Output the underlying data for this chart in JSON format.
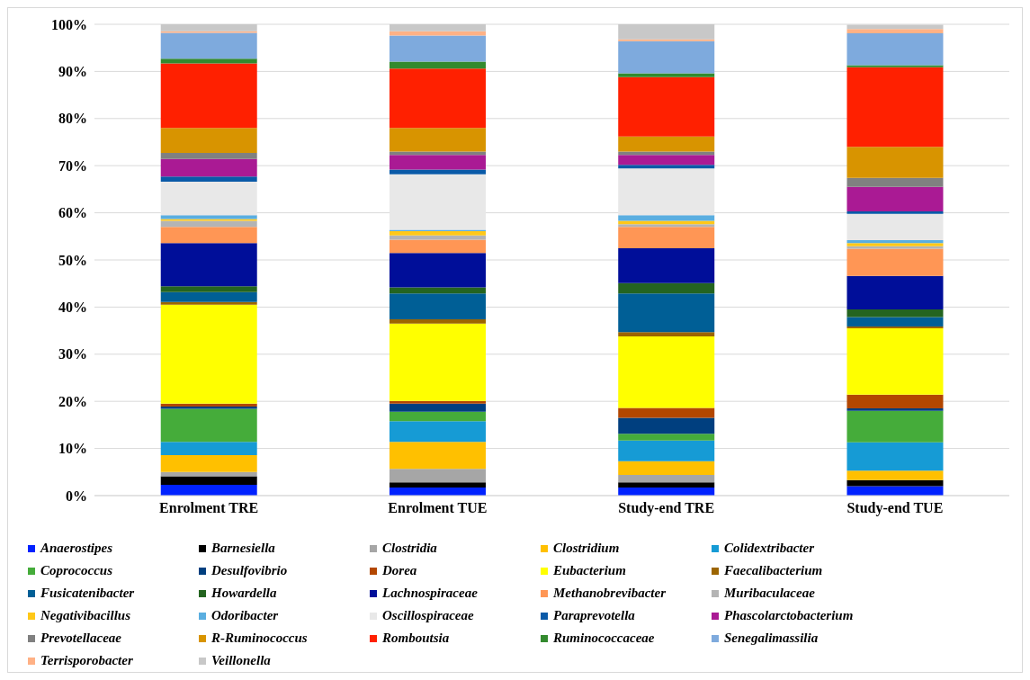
{
  "chart_data": {
    "type": "bar",
    "stacked": true,
    "categories": [
      "Enrolment TRE",
      "Enrolment TUE",
      "Study-end TRE",
      "Study-end TUE"
    ],
    "ylim": [
      0,
      100
    ],
    "yticks": [
      {
        "value": 0,
        "label": "0%"
      },
      {
        "value": 10,
        "label": "10%"
      },
      {
        "value": 20,
        "label": "20%"
      },
      {
        "value": 30,
        "label": "30%"
      },
      {
        "value": 40,
        "label": "40%"
      },
      {
        "value": 50,
        "label": "50%"
      },
      {
        "value": 60,
        "label": "60%"
      },
      {
        "value": 70,
        "label": "70%"
      },
      {
        "value": 80,
        "label": "80%"
      },
      {
        "value": 90,
        "label": "90%"
      },
      {
        "value": 100,
        "label": "100%"
      }
    ],
    "grid": "y",
    "legend": "bottom",
    "series": [
      {
        "name": "Anaerostipes",
        "color": "#0022ff",
        "values": [
          2.3,
          1.7,
          1.7,
          2.0
        ]
      },
      {
        "name": "Barnesiella",
        "color": "#000000",
        "values": [
          1.8,
          1.1,
          1.1,
          1.3
        ]
      },
      {
        "name": "Clostridia",
        "color": "#a6a6a6",
        "values": [
          0.9,
          2.9,
          1.6,
          null
        ]
      },
      {
        "name": "Clostridium",
        "color": "#ffc000",
        "values": [
          3.6,
          5.7,
          2.9,
          2.0
        ]
      },
      {
        "name": "Colidextribacter",
        "color": "#169bd5",
        "values": [
          2.8,
          4.4,
          4.4,
          6.0
        ]
      },
      {
        "name": "Coprococcus",
        "color": "#45ac3a",
        "values": [
          7.0,
          2.0,
          1.4,
          6.7
        ]
      },
      {
        "name": "Desulfovibrio",
        "color": "#003f7f",
        "values": [
          0.5,
          1.7,
          3.4,
          0.5
        ]
      },
      {
        "name": "Dorea",
        "color": "#b34700",
        "values": [
          0.6,
          0.6,
          2.1,
          2.9
        ]
      },
      {
        "name": "Eubacterium",
        "color": "#ffff00",
        "values": [
          21.0,
          16.4,
          15.2,
          14.1
        ]
      },
      {
        "name": "Faecalibacterium",
        "color": "#9c6500",
        "values": [
          0.6,
          0.9,
          0.9,
          0.4
        ]
      },
      {
        "name": "Fusicatenibacter",
        "color": "#005f96",
        "values": [
          2.1,
          5.5,
          8.2,
          2.0
        ]
      },
      {
        "name": "Howardella",
        "color": "#246420",
        "values": [
          1.2,
          1.3,
          2.2,
          1.6
        ]
      },
      {
        "name": "Lachnospiraceae",
        "color": "#000e99",
        "values": [
          9.2,
          7.3,
          7.4,
          7.1
        ]
      },
      {
        "name": "Methanobrevibacter",
        "color": "#ff9655",
        "values": [
          3.4,
          2.8,
          4.5,
          5.8
        ]
      },
      {
        "name": "Muribaculaceae",
        "color": "#b4b4b4",
        "values": [
          1.3,
          0.9,
          0.6,
          0.5
        ]
      },
      {
        "name": "Negativibacillus",
        "color": "#ffc818",
        "values": [
          0.4,
          0.9,
          0.7,
          0.7
        ]
      },
      {
        "name": "Odoribacter",
        "color": "#5aaee0",
        "values": [
          0.8,
          0.3,
          1.2,
          0.6
        ]
      },
      {
        "name": "Oscillospiraceae",
        "color": "#e8e8e8",
        "values": [
          7.1,
          11.8,
          9.9,
          5.6
        ]
      },
      {
        "name": "Paraprevotella",
        "color": "#0a5aa8",
        "values": [
          1.1,
          1.0,
          0.8,
          0.5
        ]
      },
      {
        "name": "Phascolarctobacterium",
        "color": "#aa1a94",
        "values": [
          3.7,
          3.1,
          2.1,
          5.2
        ]
      },
      {
        "name": "Prevotellaceae",
        "color": "#808080",
        "values": [
          1.3,
          0.7,
          0.7,
          1.9
        ]
      },
      {
        "name": "R-Ruminococcus",
        "color": "#d89400",
        "values": [
          5.3,
          5.0,
          3.2,
          6.6
        ]
      },
      {
        "name": "Romboutsia",
        "color": "#ff2000",
        "values": [
          13.7,
          12.6,
          12.6,
          16.9
        ]
      },
      {
        "name": "Ruminococcaceae",
        "color": "#338a2e",
        "values": [
          1.0,
          1.5,
          0.8,
          0.4
        ]
      },
      {
        "name": "Senegalimassilia",
        "color": "#7eaadd",
        "values": [
          5.5,
          5.5,
          6.8,
          6.8
        ]
      },
      {
        "name": "Terrisporobacter",
        "color": "#ffb185",
        "values": [
          0.3,
          0.9,
          0.4,
          0.9
        ]
      },
      {
        "name": "Veillonella",
        "color": "#c8c8c8",
        "values": [
          1.5,
          1.5,
          3.2,
          0.9
        ]
      }
    ]
  }
}
